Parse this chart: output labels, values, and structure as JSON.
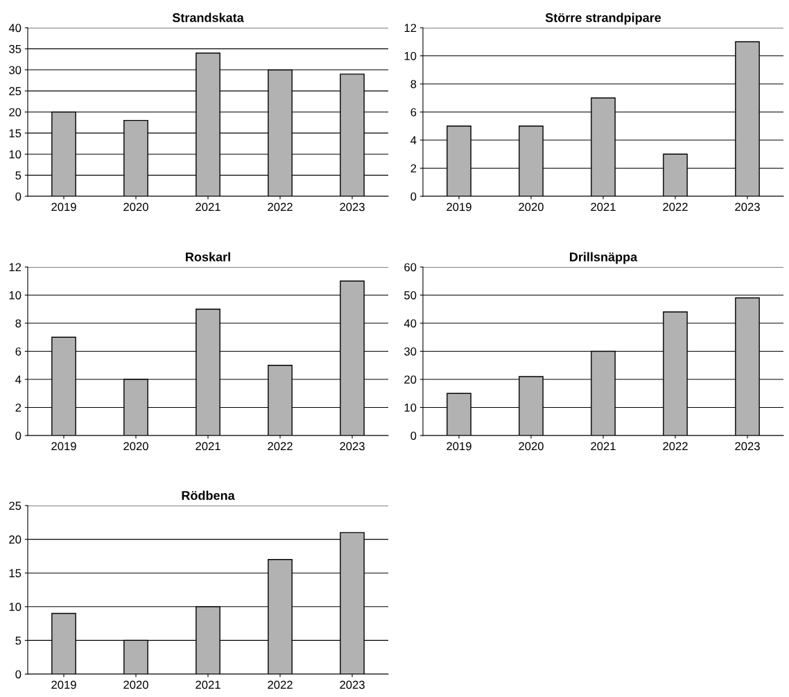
{
  "chart_data": [
    {
      "type": "bar",
      "title": "Strandskata",
      "categories": [
        "2019",
        "2020",
        "2021",
        "2022",
        "2023"
      ],
      "values": [
        20,
        18,
        34,
        30,
        29
      ],
      "color": "#b2b2b2",
      "ylim": [
        0,
        40
      ],
      "yticks": [
        0,
        5,
        10,
        15,
        20,
        25,
        30,
        35,
        40
      ],
      "grid": "y"
    },
    {
      "type": "bar",
      "title": "Större strandpipare",
      "categories": [
        "2019",
        "2020",
        "2021",
        "2022",
        "2023"
      ],
      "values": [
        5,
        5,
        7,
        3,
        11
      ],
      "color": "#b2b2b2",
      "ylim": [
        0,
        12
      ],
      "yticks": [
        0,
        2,
        4,
        6,
        8,
        10,
        12
      ],
      "grid": "y"
    },
    {
      "type": "bar",
      "title": "Roskarl",
      "categories": [
        "2019",
        "2020",
        "2021",
        "2022",
        "2023"
      ],
      "values": [
        7,
        4,
        9,
        5,
        11
      ],
      "color": "#b2b2b2",
      "ylim": [
        0,
        12
      ],
      "yticks": [
        0,
        2,
        4,
        6,
        8,
        10,
        12
      ],
      "grid": "y"
    },
    {
      "type": "bar",
      "title": "Drillsnäppa",
      "categories": [
        "2019",
        "2020",
        "2021",
        "2022",
        "2023"
      ],
      "values": [
        15,
        21,
        30,
        44,
        49
      ],
      "color": "#b2b2b2",
      "ylim": [
        0,
        60
      ],
      "yticks": [
        0,
        10,
        20,
        30,
        40,
        50,
        60
      ],
      "grid": "y"
    },
    {
      "type": "bar",
      "title": "Rödbena",
      "categories": [
        "2019",
        "2020",
        "2021",
        "2022",
        "2023"
      ],
      "values": [
        9,
        5,
        10,
        17,
        21
      ],
      "color": "#b2b2b2",
      "ylim": [
        0,
        25
      ],
      "yticks": [
        0,
        5,
        10,
        15,
        20,
        25
      ],
      "grid": "y"
    }
  ]
}
